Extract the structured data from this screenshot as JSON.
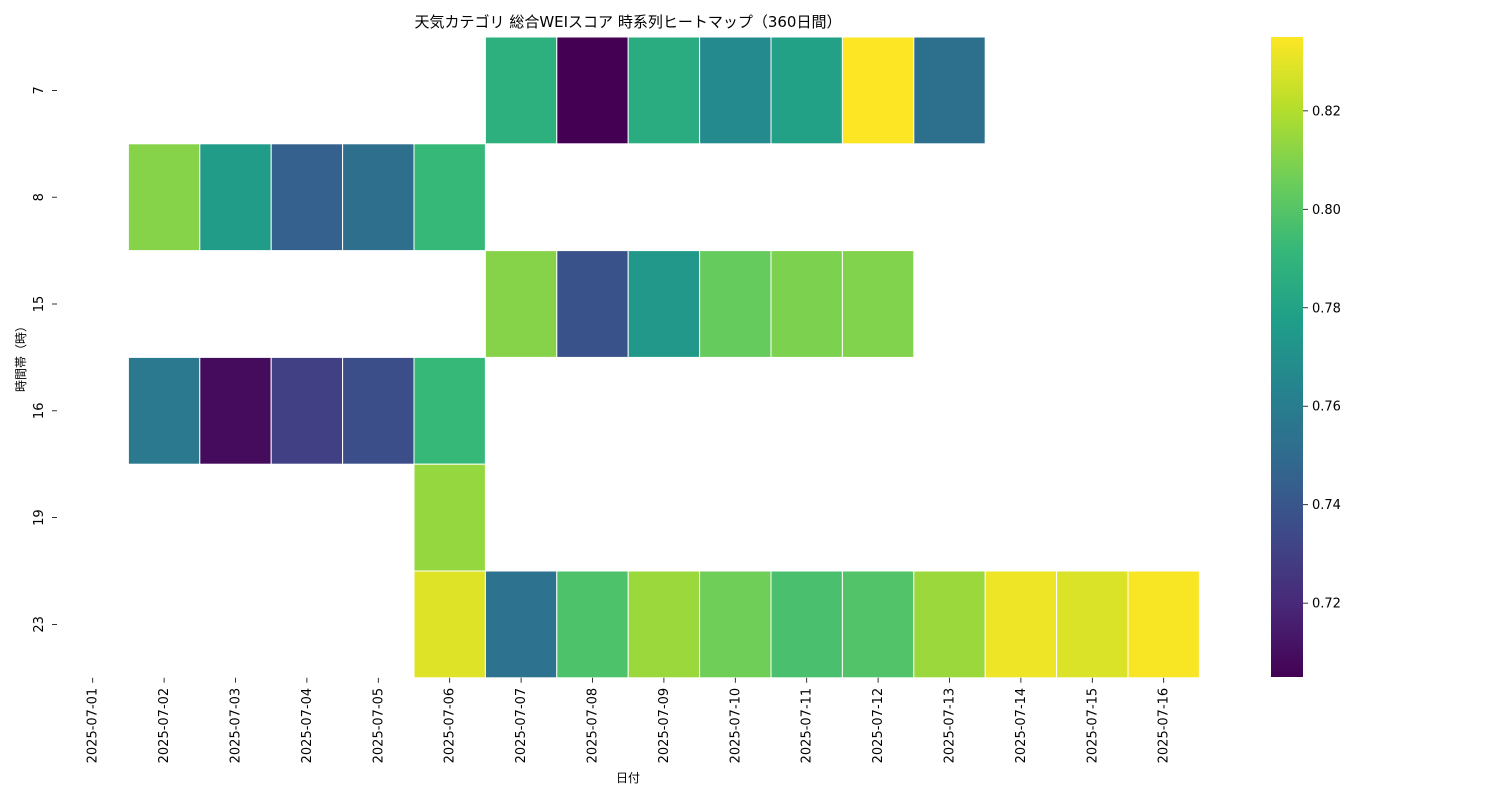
{
  "chart_data": {
    "type": "heatmap",
    "title": "天気カテゴリ 総合WEIスコア 時系列ヒートマップ（360日間）",
    "xlabel": "日付",
    "ylabel": "時間帯（時）",
    "colormap": "viridis",
    "x": [
      "2025-07-01",
      "2025-07-02",
      "2025-07-03",
      "2025-07-04",
      "2025-07-05",
      "2025-07-06",
      "2025-07-07",
      "2025-07-08",
      "2025-07-09",
      "2025-07-10",
      "2025-07-11",
      "2025-07-12",
      "2025-07-13",
      "2025-07-14",
      "2025-07-15",
      "2025-07-16"
    ],
    "y": [
      "7",
      "8",
      "15",
      "16",
      "19",
      "23"
    ],
    "values": [
      [
        null,
        null,
        null,
        null,
        null,
        null,
        0.787,
        0.705,
        0.785,
        0.767,
        0.779,
        0.835,
        0.753,
        null,
        null,
        null
      ],
      [
        null,
        0.811,
        0.776,
        0.745,
        0.752,
        0.792,
        null,
        null,
        null,
        null,
        null,
        null,
        null,
        null,
        null,
        null
      ],
      [
        null,
        null,
        null,
        null,
        null,
        null,
        0.811,
        0.738,
        0.774,
        0.804,
        0.809,
        0.81,
        null,
        null,
        null,
        null
      ],
      [
        null,
        0.758,
        0.709,
        0.73,
        0.736,
        0.792,
        null,
        null,
        null,
        null,
        null,
        null,
        null,
        null,
        null,
        null
      ],
      [
        null,
        null,
        null,
        null,
        null,
        0.814,
        null,
        null,
        null,
        null,
        null,
        null,
        null,
        null,
        null,
        null
      ],
      [
        null,
        null,
        null,
        null,
        null,
        0.829,
        0.754,
        0.798,
        0.815,
        0.806,
        0.797,
        0.799,
        0.815,
        0.832,
        0.828,
        0.834
      ]
    ],
    "vmin": 0.705,
    "vmax": 0.835,
    "colorbar": {
      "ticks": [
        0.72,
        0.74,
        0.76,
        0.78,
        0.8,
        0.82
      ],
      "tick_labels": [
        "0.72",
        "0.74",
        "0.76",
        "0.78",
        "0.80",
        "0.82"
      ]
    },
    "grid": false
  }
}
